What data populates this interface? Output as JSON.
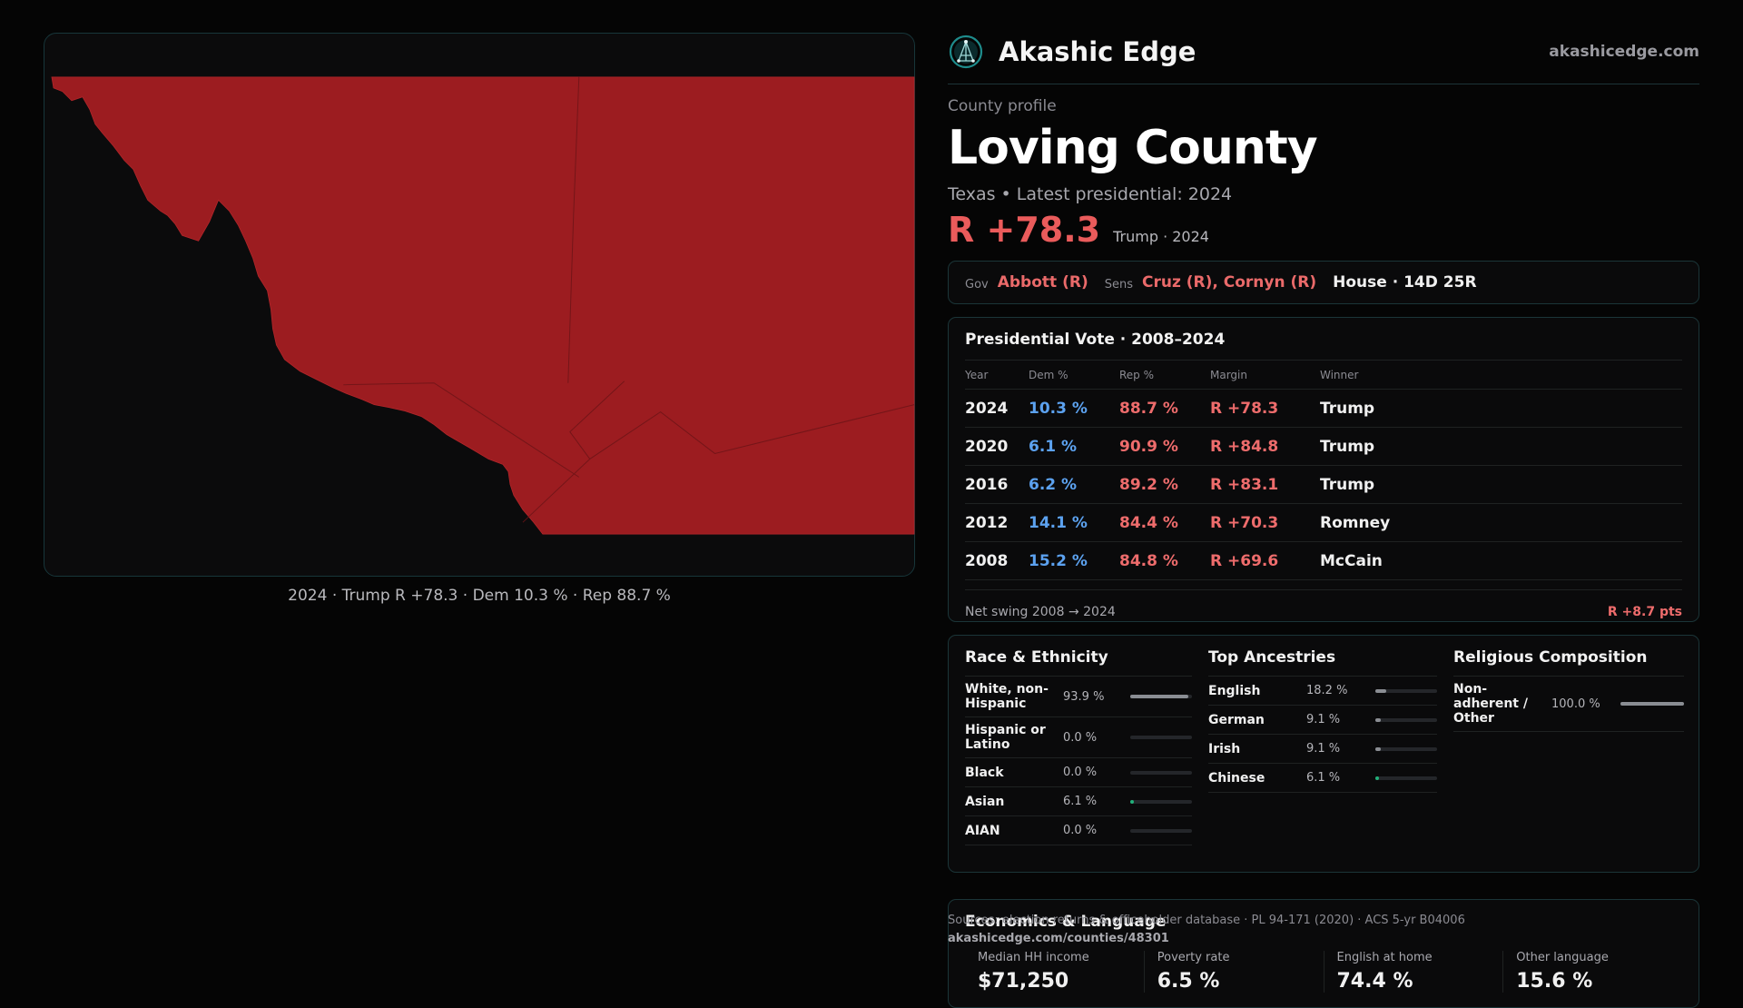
{
  "brand": {
    "name": "Akashic Edge",
    "domain": "akashicedge.com",
    "logo_icon": "network-globe-icon",
    "accent": "#1e8c8c"
  },
  "map": {
    "fill_color": "#9c1c20",
    "background": "#0b0b0c",
    "caption": "2024 · Trump R +78.3 · Dem 10.3 % · Rep 88.7 %"
  },
  "profile": {
    "label": "County profile",
    "county": "Loving County",
    "subline": "Texas • Latest presidential: 2024",
    "margin": "R +78.3",
    "margin_note": "Trump · 2024"
  },
  "officials": {
    "gov_key": "Gov",
    "gov": "Abbott (R)",
    "sens_key": "Sens",
    "sens": "Cruz (R), Cornyn (R)",
    "house": "House · 14D 25R"
  },
  "presidential": {
    "title": "Presidential Vote · 2008–2024",
    "columns": [
      "Year",
      "Dem %",
      "Rep %",
      "Margin",
      "Winner"
    ],
    "rows": [
      {
        "year": "2024",
        "dem": "10.3 %",
        "rep": "88.7 %",
        "margin": "R +78.3",
        "winner": "Trump"
      },
      {
        "year": "2020",
        "dem": "6.1 %",
        "rep": "90.9 %",
        "margin": "R +84.8",
        "winner": "Trump"
      },
      {
        "year": "2016",
        "dem": "6.2 %",
        "rep": "89.2 %",
        "margin": "R +83.1",
        "winner": "Trump"
      },
      {
        "year": "2012",
        "dem": "14.1 %",
        "rep": "84.4 %",
        "margin": "R +70.3",
        "winner": "Romney"
      },
      {
        "year": "2008",
        "dem": "15.2 %",
        "rep": "84.8 %",
        "margin": "R +69.6",
        "winner": "McCain"
      }
    ],
    "swing_label": "Net swing 2008 → 2024",
    "swing_value": "R +8.7 pts"
  },
  "race": {
    "title": "Race & Ethnicity",
    "rows": [
      {
        "label": "White, non-Hispanic",
        "value": "93.9 %",
        "fraction": 0.939,
        "color": "#8a8d93"
      },
      {
        "label": "Hispanic or Latino",
        "value": "0.0 %",
        "fraction": 0.0,
        "color": "#8a8d93"
      },
      {
        "label": "Black",
        "value": "0.0 %",
        "fraction": 0.0,
        "color": "#8a8d93"
      },
      {
        "label": "Asian",
        "value": "6.1 %",
        "fraction": 0.061,
        "color": "#22b07a"
      },
      {
        "label": "AIAN",
        "value": "0.0 %",
        "fraction": 0.0,
        "color": "#8a8d93"
      }
    ]
  },
  "ancestry": {
    "title": "Top Ancestries",
    "rows": [
      {
        "label": "English",
        "value": "18.2 %",
        "fraction": 0.182,
        "color": "#8a8d93"
      },
      {
        "label": "German",
        "value": "9.1 %",
        "fraction": 0.091,
        "color": "#8a8d93"
      },
      {
        "label": "Irish",
        "value": "9.1 %",
        "fraction": 0.091,
        "color": "#8a8d93"
      },
      {
        "label": "Chinese",
        "value": "6.1 %",
        "fraction": 0.061,
        "color": "#22b07a"
      }
    ]
  },
  "religion": {
    "title": "Religious Composition",
    "rows": [
      {
        "label": "Non-adherent / Other",
        "value": "100.0 %",
        "fraction": 1.0,
        "color": "#8a8d93"
      }
    ]
  },
  "economics": {
    "title": "Economics & Language",
    "metrics": [
      {
        "label": "Median HH income",
        "value": "$71,250"
      },
      {
        "label": "Poverty rate",
        "value": "6.5 %"
      },
      {
        "label": "English at home",
        "value": "74.4 %"
      },
      {
        "label": "Other language",
        "value": "15.6 %"
      }
    ]
  },
  "footer": {
    "source": "Sources: election returns & officeholder database · PL 94-171 (2020) · ACS 5-yr B04006",
    "url": "akashicedge.com/counties/48301"
  }
}
